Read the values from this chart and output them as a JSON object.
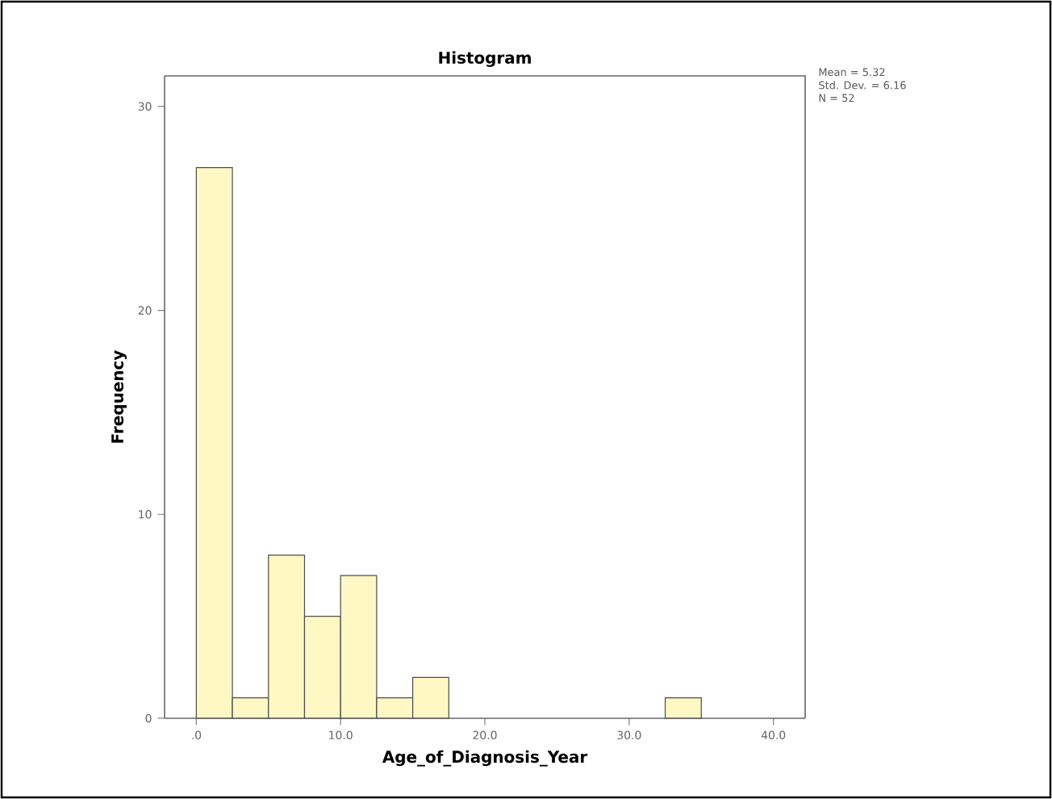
{
  "chart_data": {
    "type": "histogram",
    "title": "Histogram",
    "xlabel": "Age_of_Diagnosis_Year",
    "ylabel": "Frequency",
    "bins": [
      0,
      2.5,
      5,
      7.5,
      10,
      12.5,
      15,
      17.5,
      20,
      22.5,
      25,
      27.5,
      30,
      32.5,
      35
    ],
    "values": [
      27,
      1,
      8,
      5,
      7,
      1,
      2,
      0,
      0,
      0,
      0,
      0,
      0,
      1
    ],
    "color": "#fff8c4",
    "xlim": [
      -2.2,
      42.2
    ],
    "ylim": [
      0,
      31.5
    ],
    "xticks": [
      {
        "value": 0,
        "label": ".0"
      },
      {
        "value": 10,
        "label": "10.0"
      },
      {
        "value": 20,
        "label": "20.0"
      },
      {
        "value": 30,
        "label": "30.0"
      },
      {
        "value": 40,
        "label": "40.0"
      }
    ],
    "yticks": [
      0,
      10,
      20,
      30
    ],
    "annotations": [
      "Mean = 5.32",
      "Std. Dev. = 6.16",
      "N = 52"
    ],
    "grid": false
  }
}
